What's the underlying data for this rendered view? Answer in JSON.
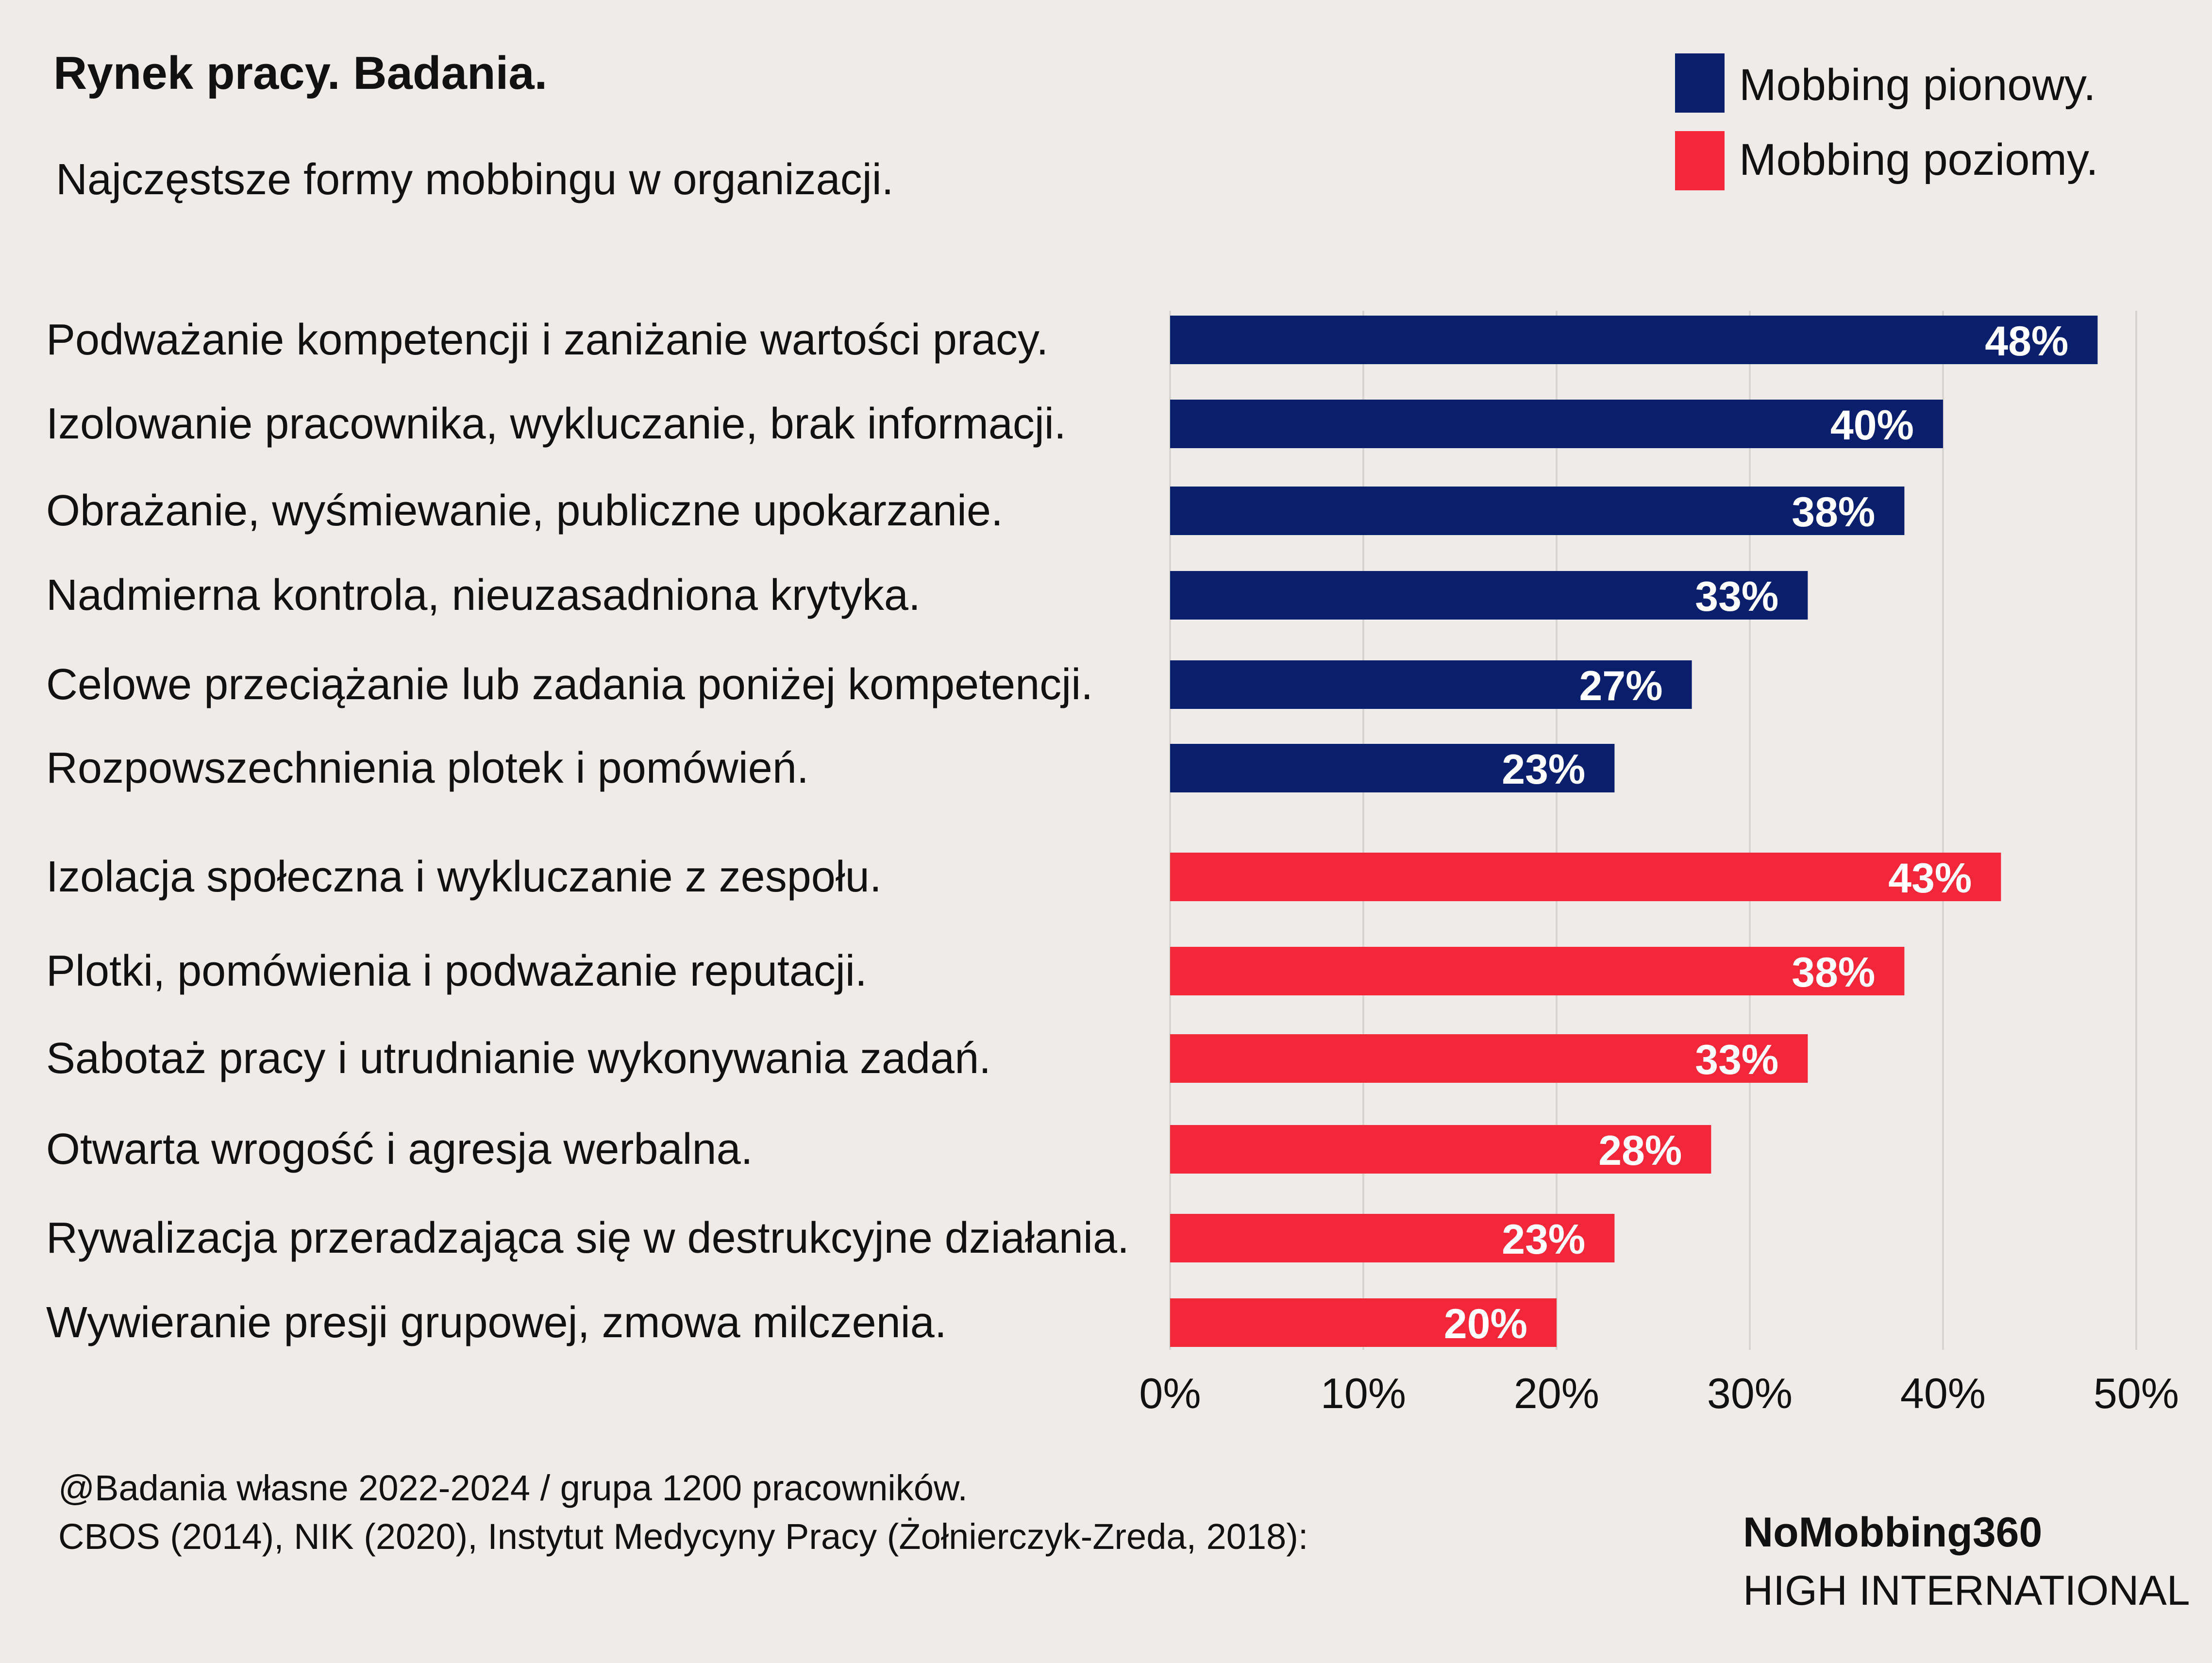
{
  "header": {
    "title": "Rynek pracy. Badania.",
    "subtitle": "Najczęstsze formy mobbingu w organizacji."
  },
  "legend": [
    {
      "label": "Mobbing pionowy.",
      "color": "#0a1f6b"
    },
    {
      "label": "Mobbing poziomy.",
      "color": "#f2273a"
    }
  ],
  "chart_data": {
    "type": "bar",
    "orientation": "horizontal",
    "title": "Rynek pracy. Badania.",
    "subtitle": "Najczęstsze formy mobbingu w organizacji.",
    "xlim": [
      0,
      50
    ],
    "x_ticks": [
      "0%",
      "10%",
      "20%",
      "30%",
      "40%",
      "50%"
    ],
    "grid": true,
    "legend_position": "top-right",
    "series": [
      {
        "name": "Mobbing pionowy.",
        "color": "#0a1f6b",
        "categories": [
          "Podważanie kompetencji i zaniżanie wartości pracy.",
          "Izolowanie pracownika, wykluczanie, brak informacji.",
          "Obrażanie, wyśmiewanie, publiczne upokarzanie.",
          "Nadmierna kontrola, nieuzasadniona krytyka.",
          "Celowe przeciążanie lub zadania poniżej kompetencji.",
          "Rozpowszechnienia plotek i pomówień."
        ],
        "values": [
          48,
          40,
          38,
          33,
          27,
          23
        ],
        "value_labels": [
          "48%",
          "40%",
          "38%",
          "33%",
          "27%",
          "23%"
        ]
      },
      {
        "name": "Mobbing poziomy.",
        "color": "#f2273a",
        "categories": [
          "Izolacja społeczna i wykluczanie z zespołu.",
          "Plotki, pomówienia i podważanie reputacji.",
          "Sabotaż pracy i utrudnianie wykonywania zadań.",
          "Otwarta wrogość i agresja werbalna.",
          "Rywalizacja przeradzająca się w destrukcyjne działania.",
          "Wywieranie presji grupowej, zmowa milczenia."
        ],
        "values": [
          43,
          38,
          33,
          28,
          23,
          20
        ],
        "value_labels": [
          "43%",
          "38%",
          "33%",
          "28%",
          "23%",
          "20%"
        ]
      }
    ]
  },
  "footer": {
    "source_line1": "@Badania własne 2022-2024 / grupa 1200 pracowników.",
    "source_line2": "CBOS (2014), NIK (2020), Instytut Medycyny Pracy (Żołnierczyk-Zreda, 2018):",
    "brand_name": "NoMobbing360",
    "brand_sub": "HIGH INTERNATIONAL"
  }
}
